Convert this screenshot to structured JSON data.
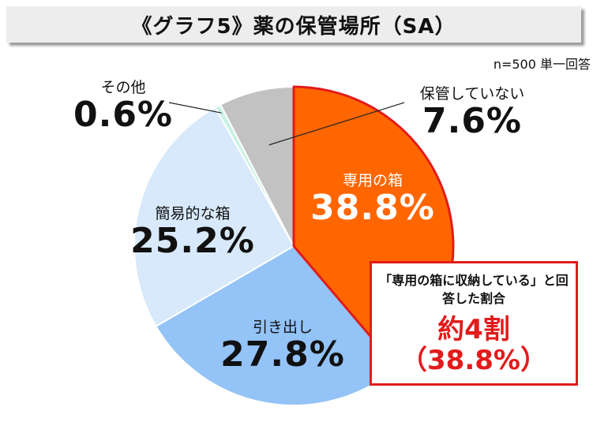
{
  "title": "《グラフ5》薬の保管場所（SA）",
  "note": "n=500  単一回答",
  "chart_data": {
    "type": "pie",
    "start_angle_deg": 0,
    "direction": "clockwise",
    "slices": [
      {
        "label": "専用の箱",
        "value": 38.8,
        "display": "38.8%",
        "color": "#ff6600",
        "stroke": "#e21b1b"
      },
      {
        "label": "引き出し",
        "value": 27.8,
        "display": "27.8%",
        "color": "#93c3f7",
        "stroke": "#ffffff"
      },
      {
        "label": "簡易的な箱",
        "value": 25.2,
        "display": "25.2%",
        "color": "#d7e9fb",
        "stroke": "#ffffff"
      },
      {
        "label": "その他",
        "value": 0.6,
        "display": "0.6%",
        "color": "#c9f2e4",
        "stroke": "#ffffff"
      },
      {
        "label": "保管していない",
        "value": 7.6,
        "display": "7.6%",
        "color": "#c2c2c2",
        "stroke": "#ffffff"
      }
    ]
  },
  "callout": {
    "text": "「専用の箱に収納している」と回答した割合",
    "main": "約4割",
    "sub": "（38.8%）"
  }
}
